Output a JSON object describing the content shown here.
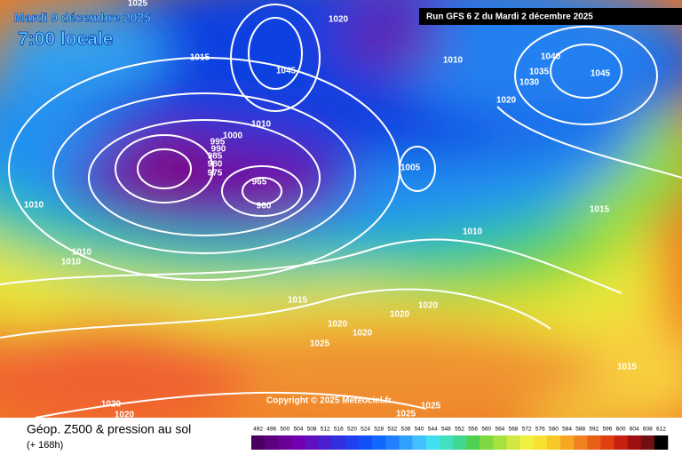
{
  "header": {
    "date": "Mardi 9 décembre 2025",
    "time": "7:00 locale",
    "run": "Run GFS 6 Z du Mardi 2 décembre 2025"
  },
  "copyright": "Copyright © 2025 Meteociel.fr",
  "footer": {
    "title": "Géop. Z500 & pression au sol",
    "lead": "(+ 168h)"
  },
  "scale": {
    "labels": [
      492,
      496,
      500,
      504,
      508,
      512,
      516,
      520,
      524,
      528,
      532,
      536,
      540,
      544,
      548,
      552,
      556,
      560,
      564,
      568,
      572,
      576,
      580,
      584,
      588,
      592,
      596,
      600,
      604,
      608,
      612
    ]
  },
  "isobars": [
    1025,
    1020,
    1015,
    1045,
    1010,
    1040,
    1035,
    1030,
    1020,
    1045,
    1010,
    1005,
    995,
    1000,
    990,
    985,
    980,
    975,
    965,
    960,
    1010,
    1010,
    1010,
    1015,
    1010,
    1015,
    1020,
    1020,
    1020,
    1025,
    1020,
    1025,
    1015,
    1025,
    1020,
    1020
  ]
}
